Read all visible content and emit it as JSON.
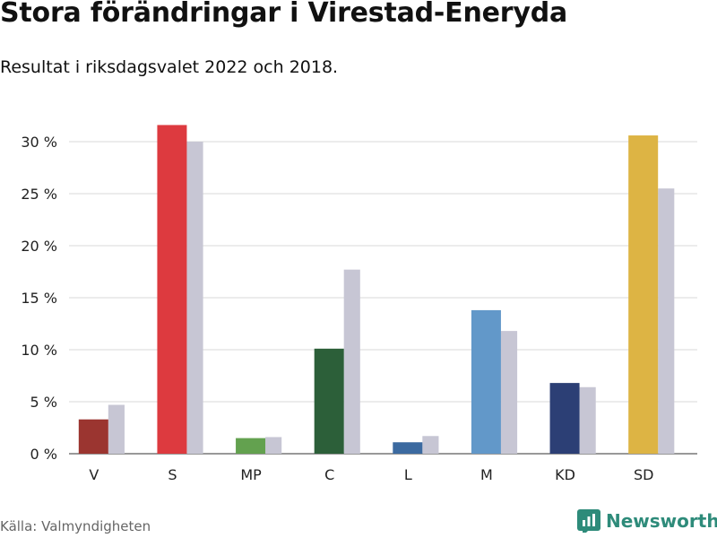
{
  "title": "Stora förändringar i Virestad-Eneryda",
  "subtitle": "Resultat i riksdagsvalet 2022 och 2018.",
  "source": "Källa: Valmyndigheten",
  "brand": "Newsworthy",
  "chart_data": {
    "type": "bar",
    "categories": [
      "V",
      "S",
      "MP",
      "C",
      "L",
      "M",
      "KD",
      "SD"
    ],
    "series": [
      {
        "name": "2022",
        "values": [
          3.3,
          31.6,
          1.5,
          10.1,
          1.1,
          13.8,
          6.8,
          30.6
        ]
      },
      {
        "name": "2018",
        "values": [
          4.7,
          30.0,
          1.6,
          17.7,
          1.7,
          11.8,
          6.4,
          25.5
        ]
      }
    ],
    "colors_2022": [
      "#9b3530",
      "#dd3a3f",
      "#63a14f",
      "#2c5f39",
      "#3c6aa0",
      "#6298c9",
      "#2c3f75",
      "#ddb444"
    ],
    "color_2018": "#c7c6d4",
    "ylim": [
      0,
      30
    ],
    "yticks": [
      0,
      5,
      10,
      15,
      20,
      25,
      30
    ],
    "ytick_labels": [
      "0 %",
      "5 %",
      "10 %",
      "15 %",
      "20 %",
      "25 %",
      "30 %"
    ],
    "grid": true,
    "xlabel": "",
    "ylabel": ""
  }
}
